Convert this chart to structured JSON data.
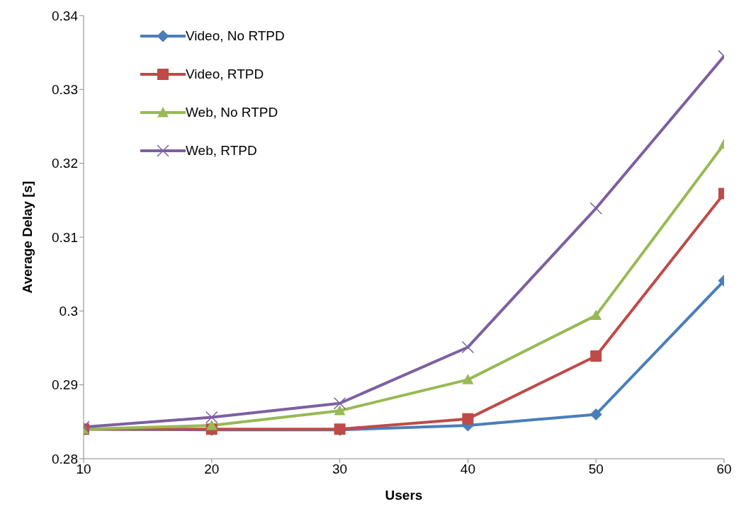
{
  "chart_data": {
    "type": "line",
    "xlabel": "Users",
    "ylabel": "Average Delay [s]",
    "x": [
      10,
      20,
      30,
      40,
      50,
      60
    ],
    "series": [
      {
        "name": "Video, No RTPD",
        "color": "#4a7ebb",
        "marker": "diamond",
        "values": [
          0.284,
          0.2839,
          0.2839,
          0.2845,
          0.286,
          0.3041
        ]
      },
      {
        "name": "Video, RTPD",
        "color": "#be4b48",
        "marker": "square",
        "values": [
          0.284,
          0.284,
          0.284,
          0.2854,
          0.2939,
          0.3159
        ]
      },
      {
        "name": "Web, No RTPD",
        "color": "#98b954",
        "marker": "triangle",
        "values": [
          0.284,
          0.2845,
          0.2865,
          0.2907,
          0.2994,
          0.3226
        ]
      },
      {
        "name": "Web, RTPD",
        "color": "#7d5fa0",
        "marker": "cross",
        "values": [
          0.2843,
          0.2856,
          0.2875,
          0.2951,
          0.3139,
          0.3345
        ]
      }
    ],
    "xlim": [
      10,
      60
    ],
    "xticks": [
      10,
      20,
      30,
      40,
      50,
      60
    ],
    "ylim": [
      0.28,
      0.34
    ],
    "yticks": [
      0.28,
      0.29,
      0.3,
      0.31,
      0.32,
      0.33,
      0.34
    ],
    "grid": false,
    "legend": "top left",
    "line_style": "solid"
  }
}
